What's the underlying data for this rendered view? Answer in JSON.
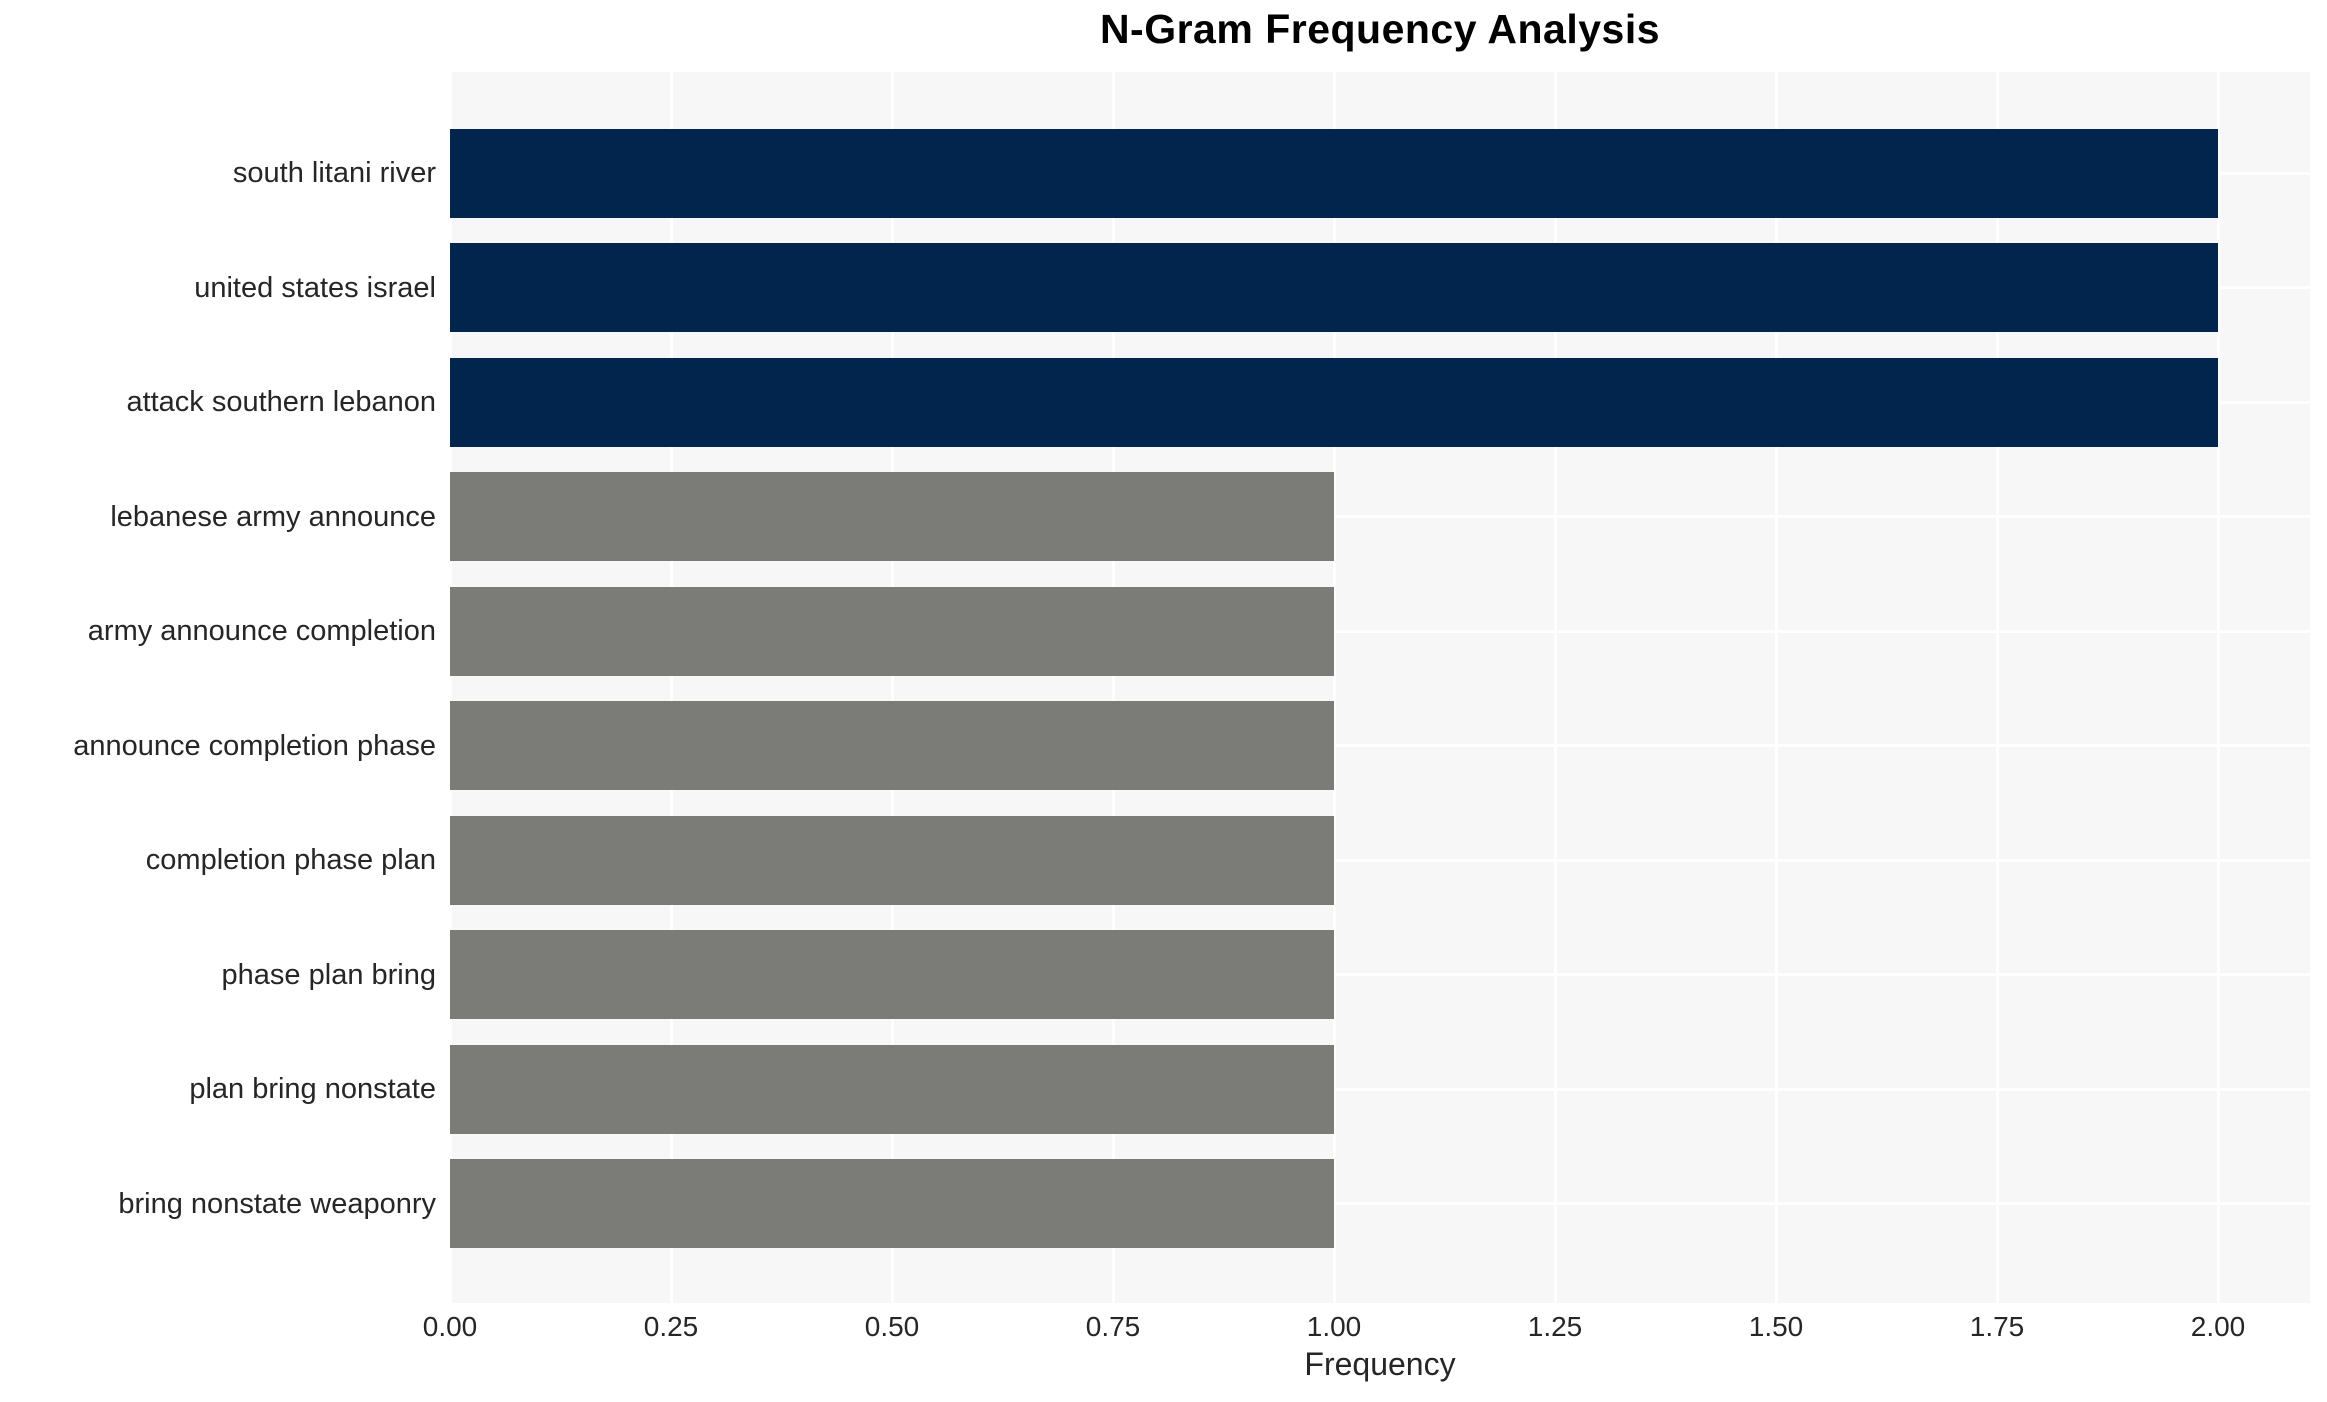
{
  "chart_data": {
    "type": "bar",
    "orientation": "horizontal",
    "title": "N-Gram Frequency Analysis",
    "xlabel": "Frequency",
    "ylabel": "",
    "categories": [
      "south litani river",
      "united states israel",
      "attack southern lebanon",
      "lebanese army announce",
      "army announce completion",
      "announce completion phase",
      "completion phase plan",
      "phase plan bring",
      "plan bring nonstate",
      "bring nonstate weaponry"
    ],
    "values": [
      2,
      2,
      2,
      1,
      1,
      1,
      1,
      1,
      1,
      1
    ],
    "bar_colors": [
      "#02254d",
      "#02254d",
      "#02254d",
      "#7b7b78",
      "#7b7b78",
      "#7b7b78",
      "#7b7b78",
      "#7b7b78",
      "#7b7b78",
      "#7b7b78"
    ],
    "xtick_labels": [
      "0.00",
      "0.25",
      "0.50",
      "0.75",
      "1.00",
      "1.25",
      "1.50",
      "1.75",
      "2.00"
    ],
    "xlim": [
      0,
      2.1
    ],
    "grid": true,
    "legend_position": "none",
    "styles": {
      "figure_bg": "#ffffff",
      "plot_bg": "#f7f7f7",
      "gridline_color": "#ffffff",
      "highlight_color": "#02254d",
      "muted_color": "#7b7b78",
      "text_color": "#262626",
      "title_color": "#000000"
    }
  }
}
